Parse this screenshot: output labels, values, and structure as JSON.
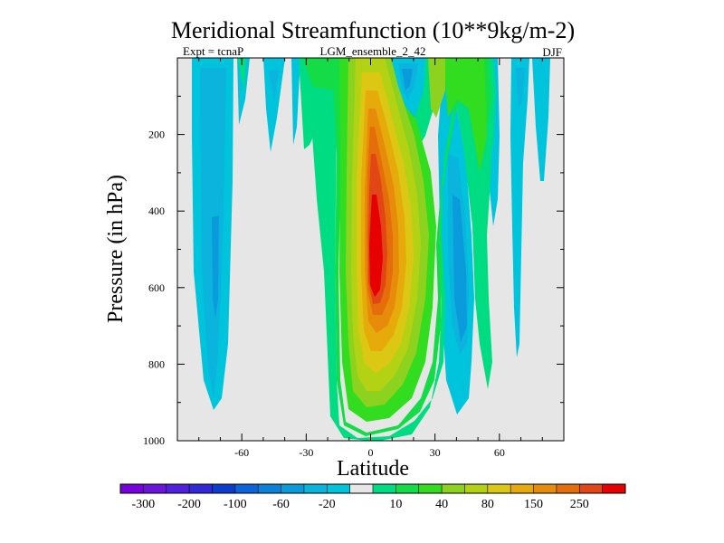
{
  "chart_data": {
    "type": "contour",
    "title": "Meridional Streamfunction (10**9kg/m-2)",
    "subtitle_left": "Expt = tcnaP",
    "subtitle_center": "LGM_ensemble_2_42",
    "subtitle_right": "DJF",
    "xlabel": "Latitude",
    "ylabel": "Pressure (in hPa)",
    "xlim": [
      -90,
      90
    ],
    "ylim": [
      0,
      1000
    ],
    "y_inverted": true,
    "xticks": [
      -60,
      -30,
      0,
      30,
      60
    ],
    "xtick_labels": [
      "-60",
      "-30",
      "0",
      "30",
      "60"
    ],
    "yticks": [
      200,
      400,
      600,
      800,
      1000
    ],
    "ytick_labels": [
      "200",
      "400",
      "600",
      "800",
      "1000"
    ],
    "colorbar": {
      "colors": [
        "#7800dc",
        "#6a14dc",
        "#5020dc",
        "#3228d8",
        "#0a3ccd",
        "#0a64dc",
        "#0a82dc",
        "#0a9bdc",
        "#0ab4dc",
        "#00c3dc",
        "#e6e6e6",
        "#00dc82",
        "#14dc46",
        "#32dc1e",
        "#8cd21e",
        "#b4d214",
        "#dcc814",
        "#e6aa0a",
        "#e68c0a",
        "#e66e0a",
        "#e14614",
        "#e60000"
      ],
      "labels": [
        "-300",
        "-200",
        "-100",
        "-60",
        "-20",
        "10",
        "40",
        "80",
        "150",
        "250"
      ]
    },
    "fields": {
      "positive_core": {
        "latitude": 2,
        "pressure_hPa": 500,
        "peak_class": "above 250"
      },
      "positive_band": {
        "latitude_range": [
          -15,
          30
        ],
        "pressure_range_hPa": [
          0,
          990
        ]
      },
      "negative_cell_south": {
        "latitude_range": [
          -83,
          -65
        ],
        "pressure_range_hPa": [
          0,
          920
        ],
        "min_class": "-60 to -20"
      },
      "negative_cell_north": {
        "latitude_range": [
          30,
          50
        ],
        "pressure_range_hPa": [
          250,
          950
        ],
        "min_class": "-100 to -60"
      }
    }
  }
}
